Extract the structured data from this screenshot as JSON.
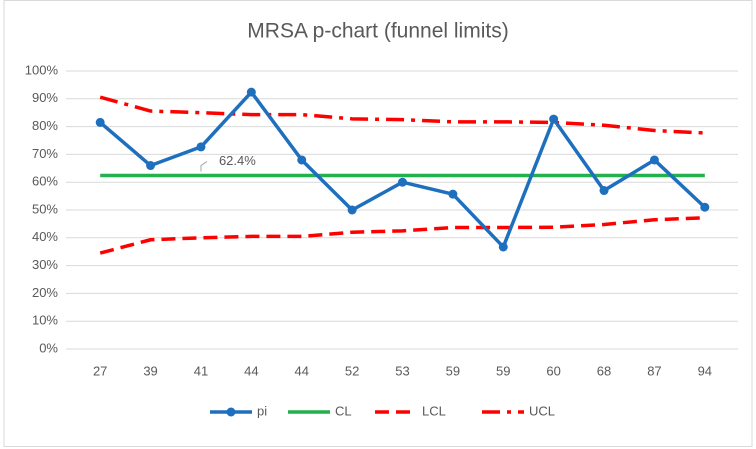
{
  "chart_data": {
    "type": "line",
    "title": "MRSA p-chart (funnel limits)",
    "categories": [
      27,
      39,
      41,
      44,
      44,
      52,
      53,
      59,
      59,
      60,
      68,
      87,
      94
    ],
    "series": [
      {
        "name": "pi",
        "color": "#1f6fbf",
        "style": "solid-markers",
        "values": [
          81.5,
          66,
          72.7,
          92.4,
          68,
          50,
          60,
          55.7,
          36.7,
          82.7,
          57,
          68,
          51
        ]
      },
      {
        "name": "CL",
        "color": "#22b14c",
        "style": "solid",
        "values": [
          62.4,
          62.4,
          62.4,
          62.4,
          62.4,
          62.4,
          62.4,
          62.4,
          62.4,
          62.4,
          62.4,
          62.4,
          62.4
        ],
        "value_labels": [
          null,
          null,
          "62.4%",
          null,
          null,
          null,
          null,
          null,
          null,
          null,
          null,
          null,
          null
        ]
      },
      {
        "name": "LCL",
        "color": "#ff0000",
        "style": "dash",
        "values": [
          34.5,
          39.3,
          40,
          40.5,
          40.5,
          42,
          42.5,
          43.7,
          43.7,
          43.8,
          44.8,
          46.5,
          47.2
        ]
      },
      {
        "name": "UCL",
        "color": "#ff0000",
        "style": "dashdot",
        "values": [
          90.6,
          85.6,
          85,
          84.3,
          84.3,
          82.8,
          82.5,
          81.7,
          81.7,
          81.5,
          80.5,
          78.6,
          77.7
        ]
      }
    ],
    "ylim": [
      0,
      100
    ],
    "yticks": [
      {
        "value": 0,
        "label": "0%"
      },
      {
        "value": 10,
        "label": "10%"
      },
      {
        "value": 20,
        "label": "20%"
      },
      {
        "value": 30,
        "label": "30%"
      },
      {
        "value": 40,
        "label": "40%"
      },
      {
        "value": 50,
        "label": "50%"
      },
      {
        "value": 60,
        "label": "60%"
      },
      {
        "value": 70,
        "label": "70%"
      },
      {
        "value": 80,
        "label": "80%"
      },
      {
        "value": 90,
        "label": "90%"
      },
      {
        "value": 100,
        "label": "100%"
      }
    ],
    "grid": true,
    "legend": "bottom"
  }
}
